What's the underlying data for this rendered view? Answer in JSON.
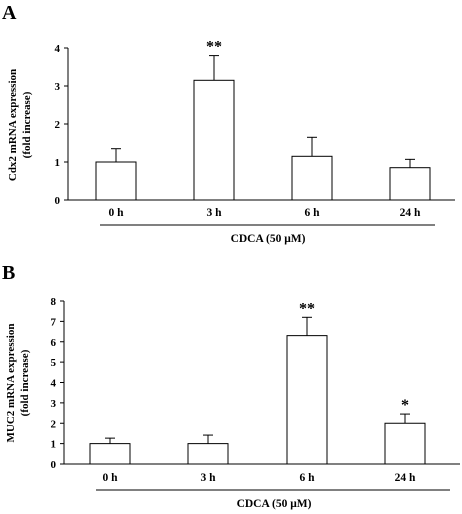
{
  "chart_data": [
    {
      "type": "bar",
      "panel_label": "A",
      "ylabel_line1": "Cdx2 mRNA expression",
      "ylabel_line2": "(fold increase)",
      "xlabel": "CDCA (50 μM)",
      "categories": [
        "0 h",
        "3 h",
        "6 h",
        "24 h"
      ],
      "values": [
        1.0,
        3.15,
        1.15,
        0.85
      ],
      "errors": [
        0.35,
        0.65,
        0.5,
        0.22
      ],
      "significance": [
        "",
        "**",
        "",
        ""
      ],
      "ylim": [
        0,
        4
      ],
      "yticks": [
        "0",
        "1",
        "2",
        "3",
        "4"
      ],
      "grid": false
    },
    {
      "type": "bar",
      "panel_label": "B",
      "ylabel_line1": "MUC2 mRNA expression",
      "ylabel_line2": "(fold increase)",
      "xlabel": "CDCA (50 μM)",
      "categories": [
        "0 h",
        "3 h",
        "6 h",
        "24 h"
      ],
      "values": [
        1.0,
        1.0,
        6.3,
        2.0
      ],
      "errors": [
        0.27,
        0.42,
        0.9,
        0.45
      ],
      "significance": [
        "",
        "",
        "**",
        "*"
      ],
      "ylim": [
        0,
        8
      ],
      "yticks": [
        "0",
        "1",
        "2",
        "3",
        "4",
        "5",
        "6",
        "7",
        "8"
      ],
      "grid": false
    }
  ]
}
